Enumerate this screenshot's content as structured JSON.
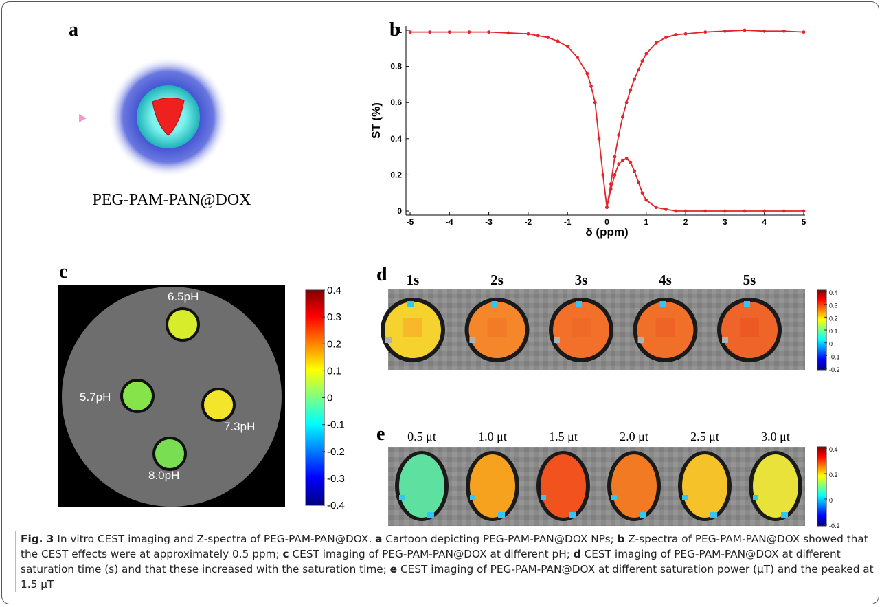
{
  "panels": {
    "a": {
      "label": "a",
      "name": "PEG-PAM-PAN@DOX"
    },
    "b": {
      "label": "b"
    },
    "c": {
      "label": "c",
      "samples": [
        "6.5pH",
        "5.7pH",
        "7.3pH",
        "8.0pH"
      ],
      "colorbar_ticks": [
        0.4,
        0.3,
        0.2,
        0.1,
        0,
        -0.1,
        -0.2,
        -0.3,
        -0.4
      ]
    },
    "d": {
      "label": "d",
      "titles": [
        "1s",
        "2s",
        "3s",
        "4s",
        "5s"
      ],
      "colorbar_ticks": [
        0.4,
        0.3,
        0.2,
        0.1,
        0,
        -0.1,
        -0.2
      ]
    },
    "e": {
      "label": "e",
      "titles": [
        "0.5 μt",
        "1.0 μt",
        "1.5 μt",
        "2.0 μt",
        "2.5 μt",
        "3.0 μt"
      ],
      "colorbar_ticks": [
        0.4,
        0.2,
        0,
        -0.2
      ]
    }
  },
  "chart_data": {
    "type": "line",
    "x_label": "δ (ppm)",
    "y_label": "ST (%)",
    "x": [
      -5,
      -4.5,
      -4,
      -3.5,
      -3,
      -2.5,
      -2,
      -1.75,
      -1.5,
      -1.25,
      -1,
      -0.75,
      -0.5,
      -0.4,
      -0.3,
      -0.2,
      -0.1,
      0,
      0.1,
      0.2,
      0.3,
      0.4,
      0.5,
      0.6,
      0.7,
      0.8,
      0.9,
      1,
      1.25,
      1.5,
      1.75,
      2,
      2.5,
      3,
      3.5,
      4,
      4.5,
      5
    ],
    "series": [
      {
        "color": "#e3242b",
        "values": [
          0.99,
          0.99,
          0.99,
          0.99,
          0.99,
          0.985,
          0.98,
          0.97,
          0.96,
          0.94,
          0.91,
          0.85,
          0.76,
          0.69,
          0.6,
          0.4,
          0.2,
          0.02,
          0.15,
          0.3,
          0.42,
          0.52,
          0.6,
          0.67,
          0.73,
          0.78,
          0.83,
          0.87,
          0.93,
          0.96,
          0.975,
          0.98,
          0.99,
          0.995,
          1,
          0.995,
          0.995,
          0.99
        ]
      },
      {
        "color": "#e3242b",
        "values": [
          null,
          null,
          null,
          null,
          null,
          null,
          null,
          null,
          null,
          null,
          null,
          null,
          null,
          null,
          null,
          null,
          null,
          0.02,
          0.12,
          0.2,
          0.26,
          0.28,
          0.29,
          0.27,
          0.22,
          0.16,
          0.1,
          0.06,
          0.02,
          0.01,
          0,
          0,
          0,
          0,
          0,
          0,
          0,
          0
        ]
      }
    ],
    "xlim": [
      -5,
      5
    ],
    "ylim": [
      0,
      1
    ],
    "xticks": [
      -5,
      -4,
      -3,
      -2,
      -1,
      0,
      1,
      2,
      3,
      4,
      5
    ],
    "yticks": [
      0,
      0.2,
      0.4,
      0.6,
      0.8,
      1
    ]
  },
  "caption": {
    "figure": "Fig. 3",
    "intro": "In vitro CEST imaging and Z-spectra of PEG-PAM-PAN@DOX.",
    "items": [
      {
        "label": "a",
        "text": "Cartoon depicting PEG-PAM-PAN@DOX NPs;"
      },
      {
        "label": "b",
        "text": "Z-spectra of PEG-PAM-PAN@DOX showed that the CEST effects were at approximately 0.5 ppm;"
      },
      {
        "label": "c",
        "text": "CEST imaging of PEG-PAM-PAN@DOX at different pH;"
      },
      {
        "label": "d",
        "text": "CEST imaging of PEG-PAM-PAN@DOX at different saturation time (s) and that these increased with the saturation time;"
      },
      {
        "label": "e",
        "text": "CEST imaging of PEG-PAM-PAN@DOX at different saturation power (μT) and the peaked at 1.5 μT"
      }
    ]
  }
}
